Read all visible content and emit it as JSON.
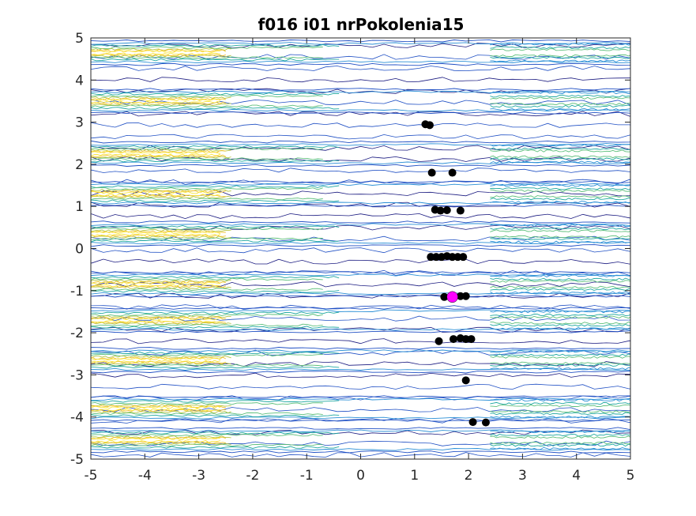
{
  "chart_data": {
    "type": "contour",
    "title": "f016 i01 nrPokolenia15",
    "xlim": [
      -5,
      5
    ],
    "ylim": [
      -5,
      5
    ],
    "x_ticks": [
      -5,
      -4,
      -3,
      -2,
      -1,
      0,
      1,
      2,
      3,
      4,
      5
    ],
    "y_ticks": [
      -5,
      -4,
      -3,
      -2,
      -1,
      0,
      1,
      2,
      3,
      4,
      5
    ],
    "x_tick_labels": [
      "-5",
      "-4",
      "-3",
      "-2",
      "-1",
      "0",
      "1",
      "2",
      "3",
      "4",
      "5"
    ],
    "y_tick_labels": [
      "-5",
      "-4",
      "-3",
      "-2",
      "-1",
      "0",
      "1",
      "2",
      "3",
      "4",
      "5"
    ],
    "grid": false,
    "contour_colormap": [
      "#1a1a80",
      "#1f4fc4",
      "#2a8fd6",
      "#20a8a0",
      "#5cbf7a",
      "#b5c545",
      "#f2c12e",
      "#f9e43a"
    ],
    "contour_bands_y": [
      4.65,
      3.5,
      2.25,
      1.3,
      0.35,
      -0.85,
      -1.7,
      -2.65,
      -3.8,
      -4.55
    ],
    "population_points": [
      {
        "x": 1.2,
        "y": 2.95
      },
      {
        "x": 1.28,
        "y": 2.93
      },
      {
        "x": 1.32,
        "y": 1.8
      },
      {
        "x": 1.7,
        "y": 1.8
      },
      {
        "x": 1.38,
        "y": 0.92
      },
      {
        "x": 1.48,
        "y": 0.9
      },
      {
        "x": 1.6,
        "y": 0.91
      },
      {
        "x": 1.85,
        "y": 0.9
      },
      {
        "x": 1.3,
        "y": -0.2
      },
      {
        "x": 1.4,
        "y": -0.2
      },
      {
        "x": 1.5,
        "y": -0.2
      },
      {
        "x": 1.6,
        "y": -0.18
      },
      {
        "x": 1.7,
        "y": -0.2
      },
      {
        "x": 1.8,
        "y": -0.2
      },
      {
        "x": 1.9,
        "y": -0.2
      },
      {
        "x": 1.55,
        "y": -1.15
      },
      {
        "x": 1.85,
        "y": -1.13
      },
      {
        "x": 1.95,
        "y": -1.13
      },
      {
        "x": 1.45,
        "y": -2.2
      },
      {
        "x": 1.72,
        "y": -2.15
      },
      {
        "x": 1.85,
        "y": -2.13
      },
      {
        "x": 1.95,
        "y": -2.15
      },
      {
        "x": 2.05,
        "y": -2.15
      },
      {
        "x": 1.95,
        "y": -3.13
      },
      {
        "x": 2.08,
        "y": -4.12
      },
      {
        "x": 2.32,
        "y": -4.13
      }
    ],
    "best_point": {
      "x": 1.7,
      "y": -1.15
    },
    "population_color": "#000000",
    "best_color": "#ff00ff"
  }
}
